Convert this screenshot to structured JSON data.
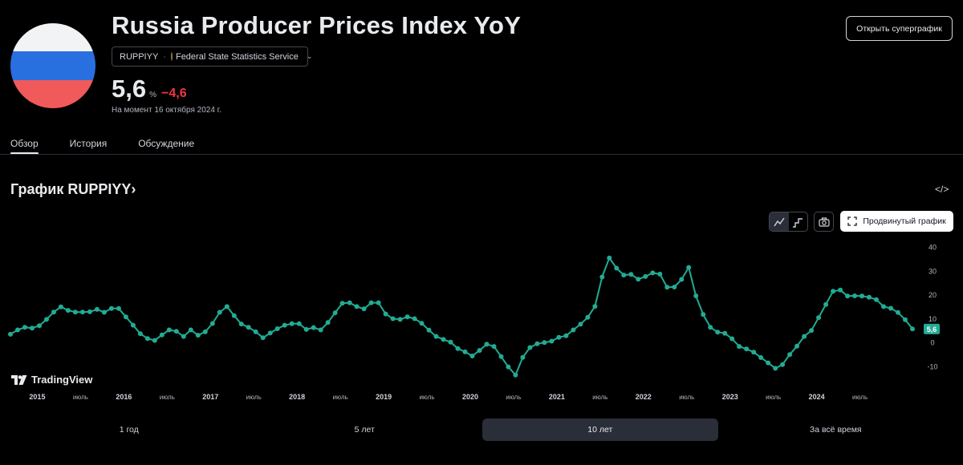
{
  "header": {
    "title": "Russia Producer Prices Index YoY",
    "symbol": "RUPPIYY",
    "separator": "·",
    "source": "Federal State Statistics Service",
    "value": "5,6",
    "unit": "%",
    "change": "−4,6",
    "as_of": "На момент 16 октября 2024 г.",
    "supergraph_button": "Открыть суперграфик"
  },
  "tabs": [
    {
      "label": "Обзор",
      "active": true
    },
    {
      "label": "История",
      "active": false
    },
    {
      "label": "Обсуждение",
      "active": false
    }
  ],
  "chart_section": {
    "heading": "График RUPPIYY›",
    "embed_label": "</>",
    "advanced_button": "Продвинутый график",
    "logo": "TradingView"
  },
  "ranges": [
    {
      "label": "1 год",
      "active": false
    },
    {
      "label": "5 лет",
      "active": false
    },
    {
      "label": "10 лет",
      "active": true
    },
    {
      "label": "За всё время",
      "active": false
    }
  ],
  "colors": {
    "line": "#22ab94",
    "badge": "#22ab94",
    "background": "#000000",
    "negative": "#f23645"
  },
  "chart_data": {
    "type": "line",
    "title": "RUPPIYY",
    "xlabel": "",
    "ylabel": "",
    "ylim": [
      -15,
      42
    ],
    "yticks": [
      40,
      30,
      20,
      10,
      0,
      -10
    ],
    "x_start": 2014.69,
    "x_step": 0.08333,
    "x_ticks": [
      {
        "label": "2015",
        "value": 2015.0,
        "bold": true
      },
      {
        "label": "июль",
        "value": 2015.5,
        "bold": false
      },
      {
        "label": "2016",
        "value": 2016.0,
        "bold": true
      },
      {
        "label": "июль",
        "value": 2016.5,
        "bold": false
      },
      {
        "label": "2017",
        "value": 2017.0,
        "bold": true
      },
      {
        "label": "июль",
        "value": 2017.5,
        "bold": false
      },
      {
        "label": "2018",
        "value": 2018.0,
        "bold": true
      },
      {
        "label": "июль",
        "value": 2018.5,
        "bold": false
      },
      {
        "label": "2019",
        "value": 2019.0,
        "bold": true
      },
      {
        "label": "июль",
        "value": 2019.5,
        "bold": false
      },
      {
        "label": "2020",
        "value": 2020.0,
        "bold": true
      },
      {
        "label": "июль",
        "value": 2020.5,
        "bold": false
      },
      {
        "label": "2021",
        "value": 2021.0,
        "bold": true
      },
      {
        "label": "июль",
        "value": 2021.5,
        "bold": false
      },
      {
        "label": "2022",
        "value": 2022.0,
        "bold": true
      },
      {
        "label": "июль",
        "value": 2022.5,
        "bold": false
      },
      {
        "label": "2023",
        "value": 2023.0,
        "bold": true
      },
      {
        "label": "июль",
        "value": 2023.5,
        "bold": false
      },
      {
        "label": "2024",
        "value": 2024.0,
        "bold": true
      },
      {
        "label": "июль",
        "value": 2024.5,
        "bold": false
      }
    ],
    "last_value_label": "5,6",
    "series": [
      {
        "name": "RUPPIYY",
        "values": [
          3.4,
          5.2,
          6.3,
          6.0,
          7.0,
          9.6,
          12.7,
          14.9,
          13.4,
          12.7,
          12.7,
          12.8,
          13.8,
          12.6,
          14.2,
          14.2,
          10.7,
          7.2,
          3.6,
          1.6,
          0.8,
          3.1,
          5.2,
          4.6,
          2.5,
          5.2,
          3.0,
          4.4,
          7.9,
          12.6,
          15.0,
          11.2,
          7.7,
          6.3,
          4.4,
          1.9,
          3.9,
          5.7,
          7.2,
          7.8,
          7.8,
          5.4,
          6.2,
          5.2,
          8.3,
          12.4,
          16.4,
          16.6,
          15.0,
          14.0,
          16.6,
          16.6,
          11.9,
          9.9,
          9.6,
          10.7,
          9.9,
          8.0,
          5.1,
          2.5,
          1.2,
          0.1,
          -2.6,
          -4.0,
          -5.7,
          -3.4,
          -0.8,
          -1.7,
          -6.0,
          -10.3,
          -13.7,
          -6.3,
          -2.2,
          -0.6,
          -0.1,
          0.5,
          2.1,
          2.8,
          5.2,
          7.6,
          10.5,
          15.1,
          27.4,
          35.4,
          31.1,
          28.2,
          28.5,
          26.5,
          27.6,
          29.1,
          28.6,
          23.1,
          23.2,
          26.4,
          31.4,
          19.5,
          11.7,
          6.3,
          4.3,
          3.8,
          1.5,
          -1.7,
          -2.8,
          -4.1,
          -6.4,
          -8.6,
          -10.9,
          -9.3,
          -5.1,
          -1.6,
          2.5,
          5.0,
          10.4,
          15.9,
          21.4,
          21.9,
          19.4,
          19.5,
          19.4,
          18.9,
          17.9,
          15.0,
          14.3,
          12.5,
          9.5,
          5.6
        ]
      }
    ]
  }
}
